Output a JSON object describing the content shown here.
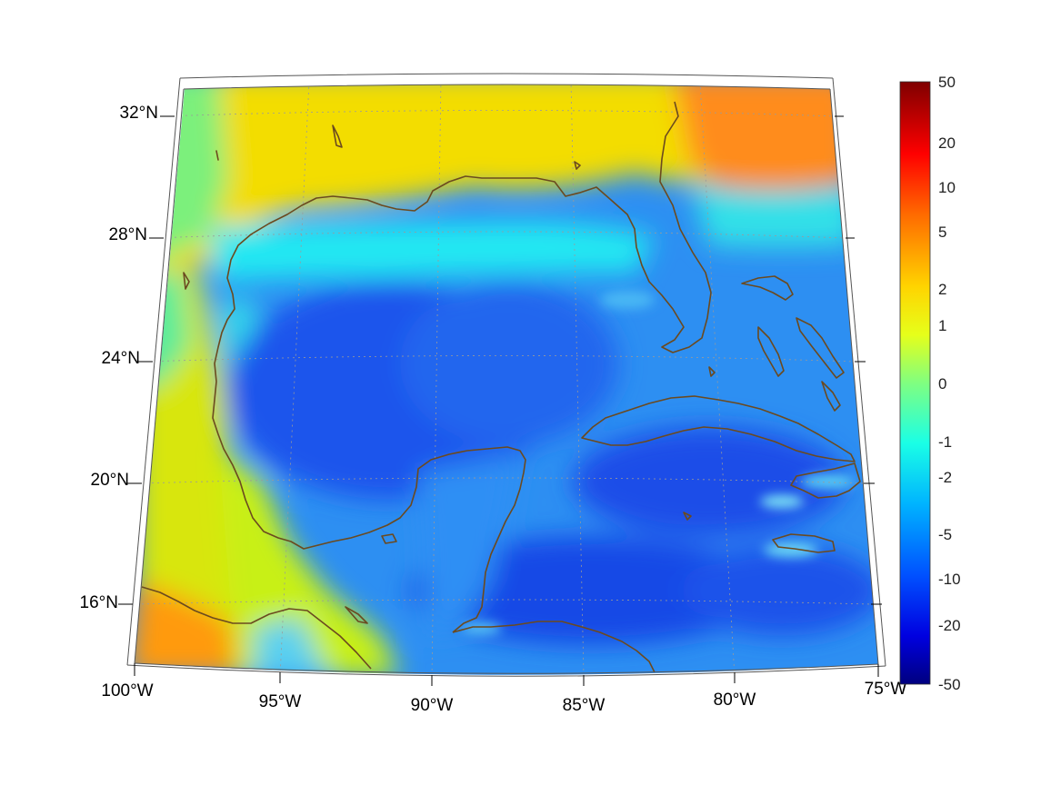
{
  "map": {
    "lon_labels": [
      "100°W",
      "95°W",
      "90°W",
      "85°W",
      "80°W",
      "75°W"
    ],
    "lat_labels": [
      "32°N",
      "28°N",
      "24°N",
      "20°N",
      "16°N"
    ],
    "colors": {
      "coastline": "#6b4a1f",
      "gridline": "#9a9a9a",
      "frame": "#555555"
    }
  },
  "colorbar": {
    "tick_labels": [
      "50",
      "20",
      "10",
      "5",
      "2",
      "1",
      "0",
      "-1",
      "-2",
      "-5",
      "-10",
      "-20",
      "-50"
    ],
    "colors": [
      "#800000",
      "#ff0000",
      "#ff8000",
      "#ffff00",
      "#80ff80",
      "#00ffff",
      "#0080ff",
      "#0000ff",
      "#000080"
    ]
  }
}
